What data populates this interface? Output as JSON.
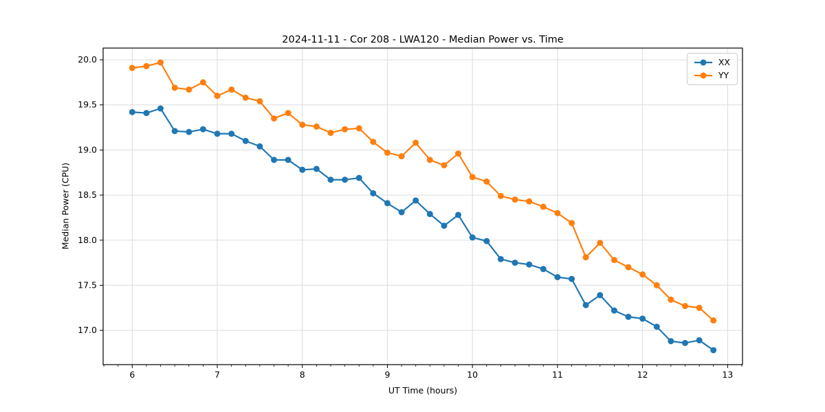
{
  "chart_data": {
    "type": "line",
    "title": "2024-11-11 - Cor 208 - LWA120 - Median Power vs. Time",
    "xlabel": "UT Time (hours)",
    "ylabel": "Median Power (CPU)",
    "xlim": [
      5.658,
      13.175
    ],
    "ylim": [
      16.62,
      20.13
    ],
    "x_ticks": [
      6,
      7,
      8,
      9,
      10,
      11,
      12,
      13
    ],
    "y_ticks": [
      17.0,
      17.5,
      18.0,
      18.5,
      19.0,
      19.5,
      20.0
    ],
    "x_minor_step": 0.1666667,
    "grid": true,
    "grid_color": "#dcdcdc",
    "spine_color": "#000000",
    "legend_position": "upper-right",
    "x": [
      6.0,
      6.167,
      6.333,
      6.5,
      6.667,
      6.833,
      7.0,
      7.167,
      7.333,
      7.5,
      7.667,
      7.833,
      8.0,
      8.167,
      8.333,
      8.5,
      8.667,
      8.833,
      9.0,
      9.167,
      9.333,
      9.5,
      9.667,
      9.833,
      10.0,
      10.167,
      10.333,
      10.5,
      10.667,
      10.833,
      11.0,
      11.167,
      11.333,
      11.5,
      11.667,
      11.833,
      12.0,
      12.167,
      12.333,
      12.5,
      12.667,
      12.833
    ],
    "series": [
      {
        "name": "XX",
        "color": "#1f77b4",
        "values": [
          19.42,
          19.41,
          19.46,
          19.21,
          19.2,
          19.23,
          19.18,
          19.18,
          19.1,
          19.04,
          18.89,
          18.89,
          18.78,
          18.79,
          18.67,
          18.67,
          18.69,
          18.52,
          18.41,
          18.31,
          18.44,
          18.29,
          18.16,
          18.28,
          18.03,
          17.99,
          17.79,
          17.75,
          17.73,
          17.68,
          17.59,
          17.57,
          17.28,
          17.39,
          17.22,
          17.15,
          17.13,
          17.04,
          16.88,
          16.86,
          16.89,
          16.78
        ]
      },
      {
        "name": "YY",
        "color": "#ff7f0e",
        "values": [
          19.91,
          19.93,
          19.97,
          19.69,
          19.67,
          19.75,
          19.6,
          19.67,
          19.58,
          19.54,
          19.35,
          19.41,
          19.28,
          19.26,
          19.19,
          19.23,
          19.24,
          19.09,
          18.97,
          18.93,
          19.08,
          18.89,
          18.83,
          18.96,
          18.7,
          18.65,
          18.49,
          18.45,
          18.43,
          18.37,
          18.3,
          18.19,
          17.81,
          17.97,
          17.78,
          17.7,
          17.62,
          17.5,
          17.34,
          17.27,
          17.25,
          17.11
        ]
      }
    ]
  }
}
